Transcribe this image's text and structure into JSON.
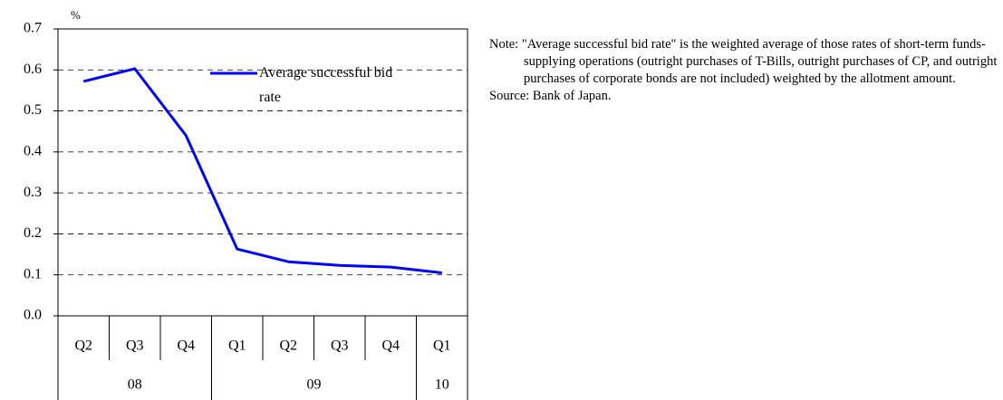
{
  "chart_data": {
    "type": "line",
    "y_unit": "%",
    "categories": [
      "Q2",
      "Q3",
      "Q4",
      "Q1",
      "Q2",
      "Q3",
      "Q4",
      "Q1"
    ],
    "category_groups": [
      "08",
      null,
      null,
      "09",
      null,
      null,
      null,
      "10"
    ],
    "series": [
      {
        "name": "Average successful bid rate",
        "color": "#0000ff",
        "values": [
          0.572,
          0.603,
          0.44,
          0.163,
          0.132,
          0.123,
          0.119,
          0.105
        ]
      }
    ],
    "ylim": [
      0,
      0.7
    ],
    "yticks": [
      {
        "value": 0,
        "label": "0.0"
      },
      0.1,
      0.2,
      0.3,
      0.4,
      0.5,
      0.6,
      0.7
    ],
    "grid": true,
    "legend": "top-right",
    "note": "Note: \"Average successful bid rate\" is the weighted average of those rates of short-term funds-supplying operations (outright purchases of T-Bills, outright purchases of CP, and outright purchases of corporate bonds are not included) weighted by the allotment amount.",
    "source": "Source: Bank of Japan."
  }
}
